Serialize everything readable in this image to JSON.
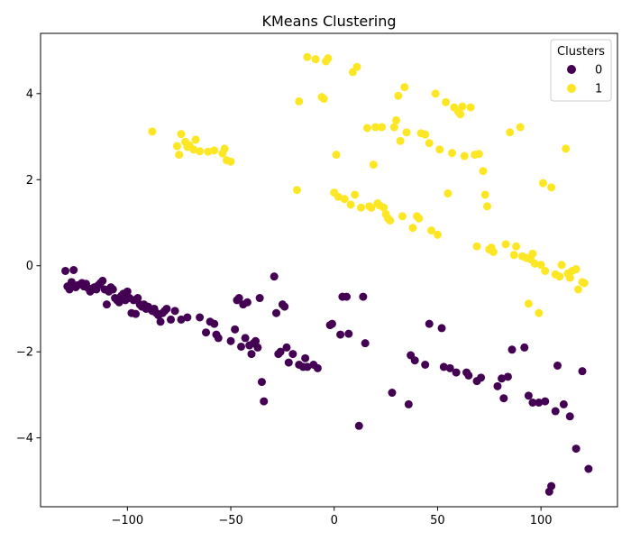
{
  "chart_data": {
    "type": "scatter",
    "title": "KMeans Clustering",
    "xlabel": "",
    "ylabel": "",
    "xlim": [
      -142,
      137
    ],
    "ylim": [
      -5.6,
      5.4
    ],
    "xticks": [
      -100,
      -50,
      0,
      50,
      100
    ],
    "yticks": [
      -4,
      -2,
      0,
      2,
      4
    ],
    "grid": false,
    "legend": {
      "title": "Clusters",
      "placement": "top-right"
    },
    "series": [
      {
        "name": "0",
        "color": "#440154",
        "points": [
          [
            -130,
            -0.12
          ],
          [
            -129,
            -0.48
          ],
          [
            -128,
            -0.55
          ],
          [
            -127,
            -0.38
          ],
          [
            -126,
            -0.1
          ],
          [
            -125,
            -0.5
          ],
          [
            -124,
            -0.45
          ],
          [
            -122,
            -0.4
          ],
          [
            -121,
            -0.48
          ],
          [
            -120,
            -0.42
          ],
          [
            -119,
            -0.52
          ],
          [
            -118,
            -0.6
          ],
          [
            -117,
            -0.55
          ],
          [
            -116,
            -0.5
          ],
          [
            -115,
            -0.55
          ],
          [
            -114,
            -0.45
          ],
          [
            -113,
            -0.4
          ],
          [
            -112,
            -0.35
          ],
          [
            -111,
            -0.55
          ],
          [
            -110,
            -0.9
          ],
          [
            -109,
            -0.6
          ],
          [
            -108,
            -0.5
          ],
          [
            -107,
            -0.55
          ],
          [
            -106,
            -0.75
          ],
          [
            -105,
            -0.8
          ],
          [
            -104,
            -0.85
          ],
          [
            -103,
            -0.7
          ],
          [
            -102,
            -0.65
          ],
          [
            -101,
            -0.8
          ],
          [
            -100,
            -0.6
          ],
          [
            -99,
            -0.75
          ],
          [
            -98,
            -1.1
          ],
          [
            -97,
            -0.8
          ],
          [
            -96,
            -1.12
          ],
          [
            -95,
            -0.75
          ],
          [
            -94,
            -0.9
          ],
          [
            -93,
            -0.95
          ],
          [
            -92,
            -0.9
          ],
          [
            -91,
            -1.0
          ],
          [
            -90,
            -0.95
          ],
          [
            -89,
            -1.0
          ],
          [
            -88,
            -1.05
          ],
          [
            -87,
            -1.0
          ],
          [
            -86,
            -1.1
          ],
          [
            -85,
            -1.15
          ],
          [
            -84,
            -1.3
          ],
          [
            -83,
            -1.1
          ],
          [
            -82,
            -1.05
          ],
          [
            -81,
            -1.0
          ],
          [
            -79,
            -1.25
          ],
          [
            -77,
            -1.05
          ],
          [
            -74,
            -1.25
          ],
          [
            -71,
            -1.2
          ],
          [
            -65,
            -1.2
          ],
          [
            -62,
            -1.55
          ],
          [
            -60,
            -1.3
          ],
          [
            -58,
            -1.35
          ],
          [
            -57,
            -1.6
          ],
          [
            -56,
            -1.68
          ],
          [
            -50,
            -1.75
          ],
          [
            -48,
            -1.48
          ],
          [
            -47,
            -0.8
          ],
          [
            -46,
            -0.75
          ],
          [
            -45,
            -1.88
          ],
          [
            -44,
            -0.9
          ],
          [
            -43,
            -1.68
          ],
          [
            -42,
            -0.85
          ],
          [
            -41,
            -1.85
          ],
          [
            -40,
            -2.05
          ],
          [
            -39,
            -1.8
          ],
          [
            -38,
            -1.75
          ],
          [
            -37,
            -1.9
          ],
          [
            -36,
            -0.75
          ],
          [
            -35,
            -2.7
          ],
          [
            -34,
            -3.15
          ],
          [
            -29,
            -0.25
          ],
          [
            -28,
            -1.1
          ],
          [
            -27,
            -2.05
          ],
          [
            -26,
            -2.0
          ],
          [
            -25,
            -0.9
          ],
          [
            -24,
            -0.95
          ],
          [
            -23,
            -1.9
          ],
          [
            -22,
            -2.25
          ],
          [
            -20,
            -2.05
          ],
          [
            -17,
            -2.3
          ],
          [
            -15,
            -2.35
          ],
          [
            -14,
            -2.15
          ],
          [
            -13,
            -2.35
          ],
          [
            -10,
            -2.3
          ],
          [
            -8,
            -2.38
          ],
          [
            -2,
            -1.38
          ],
          [
            -1,
            -1.35
          ],
          [
            3,
            -1.6
          ],
          [
            4,
            -0.72
          ],
          [
            6,
            -0.72
          ],
          [
            7,
            -1.58
          ],
          [
            12,
            -3.72
          ],
          [
            14,
            -0.72
          ],
          [
            15,
            -1.8
          ],
          [
            28,
            -2.95
          ],
          [
            36,
            -3.22
          ],
          [
            37,
            -2.08
          ],
          [
            39,
            -2.2
          ],
          [
            44,
            -2.3
          ],
          [
            46,
            -1.35
          ],
          [
            52,
            -1.45
          ],
          [
            53,
            -2.35
          ],
          [
            56,
            -2.38
          ],
          [
            59,
            -2.48
          ],
          [
            64,
            -2.48
          ],
          [
            65,
            -2.55
          ],
          [
            69,
            -2.68
          ],
          [
            71,
            -2.6
          ],
          [
            79,
            -2.8
          ],
          [
            81,
            -2.62
          ],
          [
            82,
            -3.08
          ],
          [
            84,
            -2.58
          ],
          [
            86,
            -1.95
          ],
          [
            92,
            -1.9
          ],
          [
            94,
            -3.02
          ],
          [
            96,
            -3.18
          ],
          [
            99,
            -3.18
          ],
          [
            104,
            -5.25
          ],
          [
            105,
            -5.12
          ],
          [
            107,
            -3.38
          ],
          [
            108,
            -2.32
          ],
          [
            111,
            -3.22
          ],
          [
            114,
            -3.5
          ],
          [
            117,
            -4.25
          ],
          [
            120,
            -2.45
          ],
          [
            123,
            -4.72
          ],
          [
            102,
            -3.15
          ]
        ]
      },
      {
        "name": "1",
        "color": "#fde725",
        "points": [
          [
            -88,
            3.12
          ],
          [
            -76,
            2.78
          ],
          [
            -75,
            2.58
          ],
          [
            -74,
            3.06
          ],
          [
            -72,
            2.88
          ],
          [
            -71,
            2.76
          ],
          [
            -70,
            2.8
          ],
          [
            -68,
            2.7
          ],
          [
            -67,
            2.93
          ],
          [
            -65,
            2.66
          ],
          [
            -61,
            2.65
          ],
          [
            -58,
            2.68
          ],
          [
            -54,
            2.61
          ],
          [
            -53,
            2.72
          ],
          [
            -52,
            2.45
          ],
          [
            -50,
            2.42
          ],
          [
            -18,
            1.76
          ],
          [
            -17,
            3.82
          ],
          [
            -13,
            4.85
          ],
          [
            -9,
            4.8
          ],
          [
            -6,
            3.92
          ],
          [
            -5,
            3.88
          ],
          [
            -4,
            4.75
          ],
          [
            -3,
            4.82
          ],
          [
            0,
            1.7
          ],
          [
            1,
            2.58
          ],
          [
            2,
            1.6
          ],
          [
            5,
            1.55
          ],
          [
            8,
            1.42
          ],
          [
            9,
            4.5
          ],
          [
            10,
            1.65
          ],
          [
            11,
            4.62
          ],
          [
            13,
            1.35
          ],
          [
            16,
            3.2
          ],
          [
            17,
            1.38
          ],
          [
            18,
            1.35
          ],
          [
            19,
            2.35
          ],
          [
            20,
            3.22
          ],
          [
            21,
            1.45
          ],
          [
            22,
            1.4
          ],
          [
            23,
            3.22
          ],
          [
            24,
            1.35
          ],
          [
            25,
            1.2
          ],
          [
            26,
            1.1
          ],
          [
            27,
            1.05
          ],
          [
            29,
            3.22
          ],
          [
            30,
            3.38
          ],
          [
            31,
            3.95
          ],
          [
            32,
            2.9
          ],
          [
            33,
            1.15
          ],
          [
            34,
            4.15
          ],
          [
            35,
            3.1
          ],
          [
            38,
            0.88
          ],
          [
            40,
            1.15
          ],
          [
            41,
            1.1
          ],
          [
            42,
            3.08
          ],
          [
            44,
            3.05
          ],
          [
            46,
            2.85
          ],
          [
            47,
            0.82
          ],
          [
            49,
            4.0
          ],
          [
            50,
            0.72
          ],
          [
            51,
            2.7
          ],
          [
            54,
            3.8
          ],
          [
            55,
            1.68
          ],
          [
            57,
            2.62
          ],
          [
            58,
            3.68
          ],
          [
            60,
            3.58
          ],
          [
            61,
            3.52
          ],
          [
            62,
            3.7
          ],
          [
            63,
            2.55
          ],
          [
            66,
            3.68
          ],
          [
            68,
            2.58
          ],
          [
            69,
            0.45
          ],
          [
            70,
            2.6
          ],
          [
            72,
            2.2
          ],
          [
            73,
            1.65
          ],
          [
            74,
            1.38
          ],
          [
            75,
            0.38
          ],
          [
            76,
            0.42
          ],
          [
            77,
            0.32
          ],
          [
            83,
            0.5
          ],
          [
            85,
            3.1
          ],
          [
            87,
            0.25
          ],
          [
            88,
            0.45
          ],
          [
            90,
            3.22
          ],
          [
            91,
            0.22
          ],
          [
            93,
            0.18
          ],
          [
            94,
            -0.88
          ],
          [
            95,
            0.15
          ],
          [
            96,
            0.28
          ],
          [
            97,
            0.05
          ],
          [
            99,
            -1.1
          ],
          [
            100,
            0.02
          ],
          [
            101,
            1.92
          ],
          [
            102,
            -0.12
          ],
          [
            105,
            1.82
          ],
          [
            107,
            -0.2
          ],
          [
            109,
            -0.25
          ],
          [
            110,
            0.02
          ],
          [
            112,
            2.72
          ],
          [
            113,
            -0.18
          ],
          [
            114,
            -0.28
          ],
          [
            115,
            -0.12
          ],
          [
            117,
            -0.08
          ],
          [
            118,
            -0.55
          ],
          [
            120,
            -0.38
          ],
          [
            121,
            -0.4
          ]
        ]
      }
    ]
  }
}
